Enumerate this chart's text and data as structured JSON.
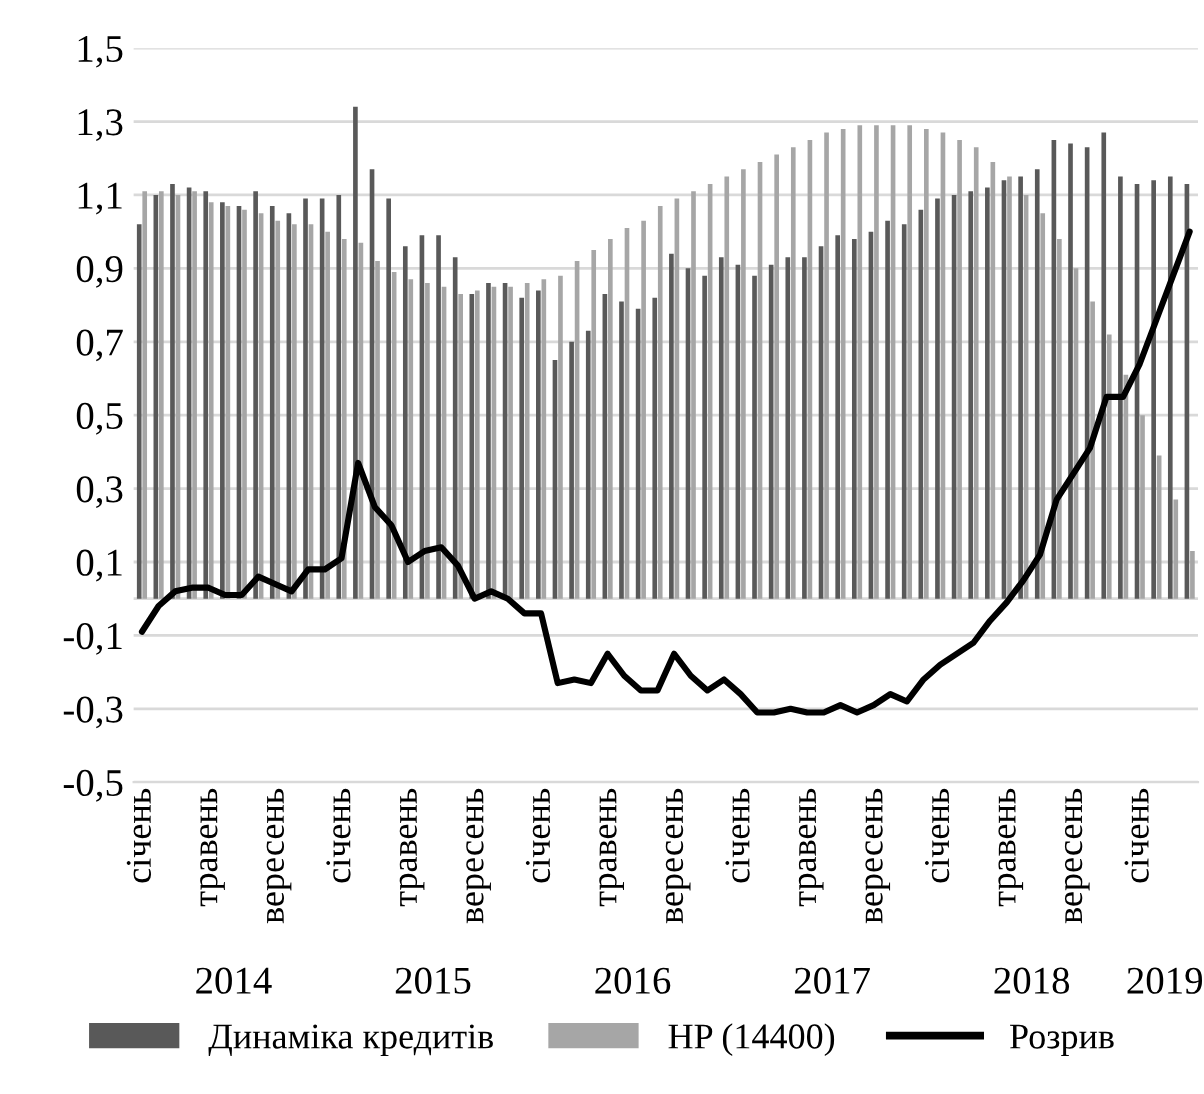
{
  "chart_data": {
    "type": "bar",
    "categories": [
      "січень",
      null,
      null,
      null,
      "травень",
      null,
      null,
      null,
      "вересень",
      null,
      null,
      null,
      "січень",
      null,
      null,
      null,
      "травень",
      null,
      null,
      null,
      "вересень",
      null,
      null,
      null,
      "січень",
      null,
      null,
      null,
      "травень",
      null,
      null,
      null,
      "вересень",
      null,
      null,
      null,
      "січень",
      null,
      null,
      null,
      "травень",
      null,
      null,
      null,
      "вересень",
      null,
      null,
      null,
      "січень",
      null,
      null,
      null,
      "травень",
      null,
      null,
      null,
      "вересень",
      null,
      null,
      null,
      "січень",
      null,
      null,
      null
    ],
    "series": [
      {
        "name": "Динаміка кредитів",
        "color": "#595959",
        "values": [
          1.02,
          1.1,
          1.13,
          1.12,
          1.11,
          1.08,
          1.07,
          1.11,
          1.07,
          1.05,
          1.09,
          1.09,
          1.1,
          1.34,
          1.17,
          1.09,
          0.96,
          0.99,
          0.99,
          0.93,
          0.83,
          0.86,
          0.86,
          0.82,
          0.84,
          0.65,
          0.7,
          0.73,
          0.83,
          0.81,
          0.79,
          0.82,
          0.94,
          0.9,
          0.88,
          0.93,
          0.91,
          0.88,
          0.91,
          0.93,
          0.93,
          0.96,
          0.99,
          0.98,
          1.0,
          1.03,
          1.02,
          1.06,
          1.09,
          1.1,
          1.11,
          1.12,
          1.14,
          1.15,
          1.17,
          1.25,
          1.24,
          1.23,
          1.27,
          1.15,
          1.13,
          1.14,
          1.15,
          1.13
        ]
      },
      {
        "name": "HP (14400)",
        "color": "#a6a6a6",
        "values": [
          1.11,
          1.11,
          1.1,
          1.11,
          1.08,
          1.07,
          1.06,
          1.05,
          1.03,
          1.02,
          1.02,
          1.0,
          0.98,
          0.97,
          0.92,
          0.89,
          0.87,
          0.86,
          0.85,
          0.83,
          0.84,
          0.85,
          0.85,
          0.86,
          0.87,
          0.88,
          0.92,
          0.95,
          0.98,
          1.01,
          1.03,
          1.07,
          1.09,
          1.11,
          1.13,
          1.15,
          1.17,
          1.19,
          1.21,
          1.23,
          1.25,
          1.27,
          1.28,
          1.29,
          1.29,
          1.29,
          1.29,
          1.28,
          1.27,
          1.25,
          1.23,
          1.19,
          1.15,
          1.1,
          1.05,
          0.98,
          0.9,
          0.81,
          0.72,
          0.61,
          0.5,
          0.39,
          0.27,
          0.13
        ]
      },
      {
        "name": "Розрив",
        "type": "line",
        "color": "#000000",
        "values": [
          -0.09,
          -0.02,
          0.02,
          0.03,
          0.03,
          0.01,
          0.01,
          0.06,
          0.04,
          0.02,
          0.08,
          0.08,
          0.11,
          0.37,
          0.25,
          0.2,
          0.1,
          0.13,
          0.14,
          0.09,
          0.0,
          0.02,
          0.0,
          -0.04,
          -0.04,
          -0.23,
          -0.22,
          -0.23,
          -0.15,
          -0.21,
          -0.25,
          -0.25,
          -0.15,
          -0.21,
          -0.25,
          -0.22,
          -0.26,
          -0.31,
          -0.31,
          -0.3,
          -0.31,
          -0.31,
          -0.29,
          -0.31,
          -0.29,
          -0.26,
          -0.28,
          -0.22,
          -0.18,
          -0.15,
          -0.12,
          -0.06,
          -0.01,
          0.05,
          0.12,
          0.27,
          0.34,
          0.41,
          0.55,
          0.55,
          0.64,
          0.76,
          0.88,
          1.0
        ]
      }
    ],
    "ylim": [
      -0.5,
      1.5
    ],
    "yticks": [
      {
        "value": -0.5,
        "label": "-0,5"
      },
      {
        "value": -0.3,
        "label": "-0,3"
      },
      {
        "value": -0.1,
        "label": "-0,1"
      },
      {
        "value": 0.1,
        "label": "0,1"
      },
      {
        "value": 0.3,
        "label": "0,3"
      },
      {
        "value": 0.5,
        "label": "0,5"
      },
      {
        "value": 0.7,
        "label": "0,7"
      },
      {
        "value": 0.9,
        "label": "0,9"
      },
      {
        "value": 1.1,
        "label": "1,1"
      },
      {
        "value": 1.3,
        "label": "1,3"
      },
      {
        "value": 1.5,
        "label": "1,5"
      }
    ],
    "grid": "y",
    "legend": "bottom",
    "annotations": [
      "2014",
      "2015",
      "2016",
      "2017",
      "2018",
      "2019"
    ]
  }
}
